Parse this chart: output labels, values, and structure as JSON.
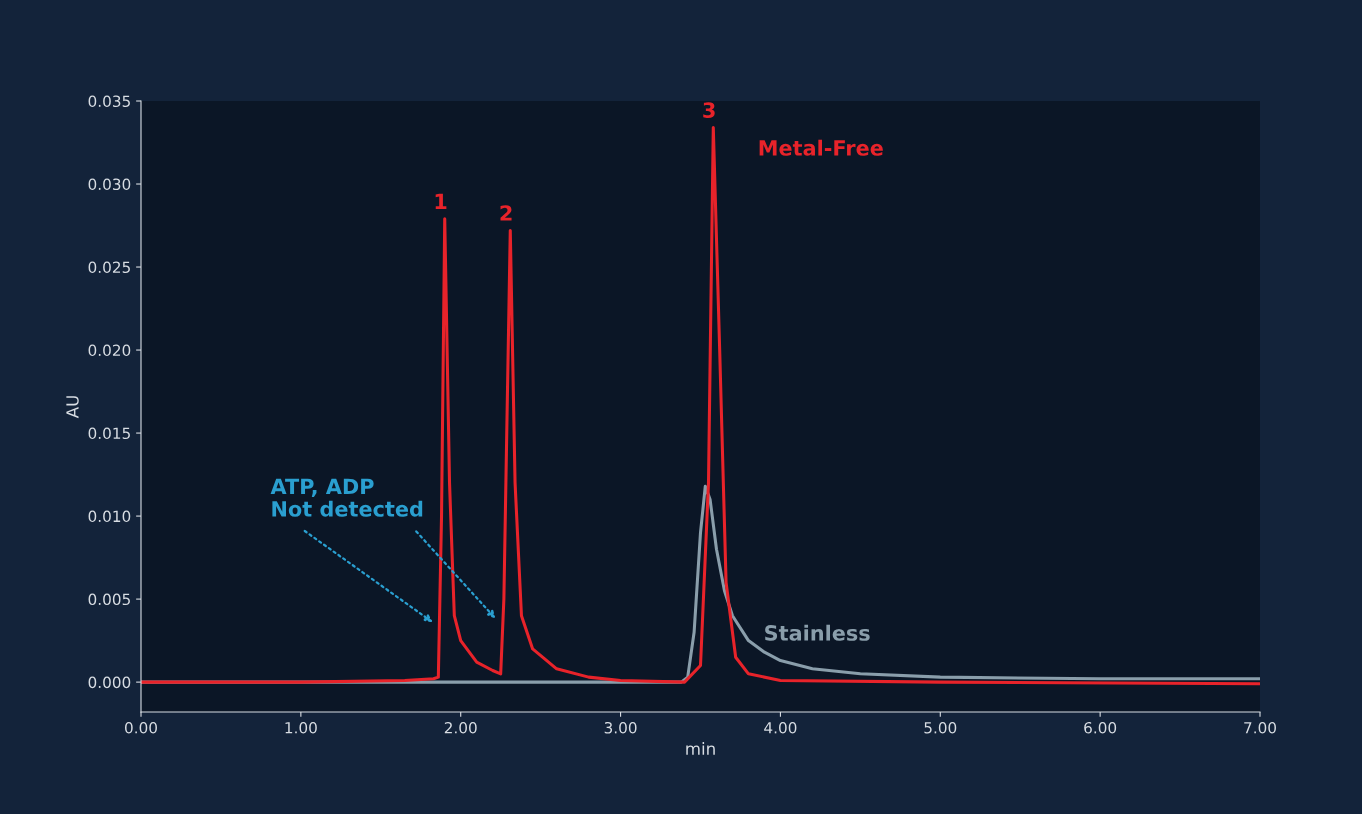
{
  "chart_data": {
    "type": "line",
    "xlabel": "min",
    "ylabel": "AU",
    "xlim": [
      0,
      7
    ],
    "xticks": [
      {
        "value": 0,
        "label": "0.00"
      },
      {
        "value": 1,
        "label": "1.00"
      },
      {
        "value": 2,
        "label": "2.00"
      },
      {
        "value": 3,
        "label": "3.00"
      },
      {
        "value": 4,
        "label": "4.00"
      },
      {
        "value": 5,
        "label": "5.00"
      },
      {
        "value": 6,
        "label": "6.00"
      },
      {
        "value": 7,
        "label": "7.00"
      }
    ],
    "ylim": [
      -0.0018,
      0.035
    ],
    "yticks": [
      {
        "value": 0,
        "label": "0.000"
      },
      {
        "value": 0.005,
        "label": "0.005"
      },
      {
        "value": 0.01,
        "label": "0.010"
      },
      {
        "value": 0.015,
        "label": "0.015"
      },
      {
        "value": 0.02,
        "label": "0.020"
      },
      {
        "value": 0.025,
        "label": "0.025"
      },
      {
        "value": 0.03,
        "label": "0.030"
      },
      {
        "value": 0.035,
        "label": "0.035"
      }
    ],
    "grid": false,
    "legend": false,
    "marker": "none",
    "line_style": "solid",
    "series": [
      {
        "name": "Stainless",
        "color": "#8a9eab",
        "x": [
          0,
          1.0,
          2.0,
          3.0,
          3.38,
          3.42,
          3.46,
          3.5,
          3.53,
          3.56,
          3.6,
          3.65,
          3.7,
          3.8,
          3.9,
          4.0,
          4.2,
          4.5,
          5.0,
          6.0,
          7.0
        ],
        "values": [
          0,
          0,
          0,
          0,
          0,
          0.0003,
          0.003,
          0.009,
          0.0118,
          0.011,
          0.008,
          0.0055,
          0.004,
          0.0025,
          0.0018,
          0.0013,
          0.0008,
          0.0005,
          0.0003,
          0.0002,
          0.0002
        ]
      },
      {
        "name": "Metal-Free",
        "color": "#e8232a",
        "x": [
          0,
          1.0,
          1.65,
          1.83,
          1.86,
          1.88,
          1.9,
          1.93,
          1.96,
          2.0,
          2.1,
          2.2,
          2.25,
          2.27,
          2.31,
          2.34,
          2.38,
          2.45,
          2.6,
          2.8,
          3.0,
          3.4,
          3.5,
          3.55,
          3.58,
          3.62,
          3.66,
          3.72,
          3.8,
          4.0,
          5.0,
          7.0
        ],
        "values": [
          0,
          0,
          0.0001,
          0.0002,
          0.0003,
          0.01,
          0.0279,
          0.012,
          0.004,
          0.0025,
          0.0012,
          0.0007,
          0.0005,
          0.005,
          0.0272,
          0.012,
          0.004,
          0.002,
          0.0008,
          0.0003,
          0.0001,
          0,
          0.001,
          0.012,
          0.0334,
          0.02,
          0.006,
          0.0015,
          0.0005,
          0.0001,
          0,
          -0.0001
        ]
      }
    ],
    "annotations": [
      {
        "text": "1",
        "x": 1.9,
        "y": 0.0279
      },
      {
        "text": "2",
        "x": 2.31,
        "y": 0.0272
      },
      {
        "text": "3",
        "x": 3.58,
        "y": 0.0334
      },
      "ATP, ADP\nNot detected"
    ]
  }
}
